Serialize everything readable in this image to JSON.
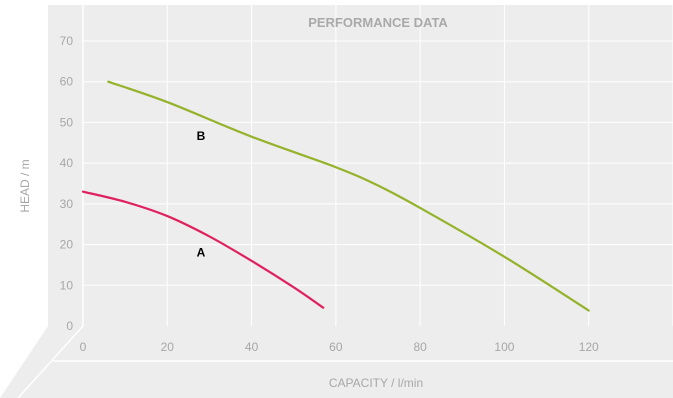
{
  "chart_data": {
    "type": "line",
    "title": "PERFORMANCE DATA",
    "xlabel": "CAPACITY / l/min",
    "ylabel": "HEAD / m",
    "xlim": [
      0,
      140
    ],
    "ylim": [
      0,
      70
    ],
    "xticks": [
      0,
      20,
      40,
      60,
      80,
      100,
      120
    ],
    "yticks": [
      0,
      10,
      20,
      30,
      40,
      50,
      60,
      70
    ],
    "grid": true,
    "series": [
      {
        "name": "A",
        "color": "#e0215f",
        "points": [
          [
            0,
            33
          ],
          [
            10,
            30.5
          ],
          [
            20,
            27
          ],
          [
            30,
            22
          ],
          [
            40,
            16
          ],
          [
            50,
            9.5
          ],
          [
            57,
            4.5
          ]
        ]
      },
      {
        "name": "B",
        "color": "#94b22a",
        "points": [
          [
            6,
            60
          ],
          [
            20,
            55
          ],
          [
            40,
            46.5
          ],
          [
            60,
            39
          ],
          [
            70,
            34.5
          ],
          [
            80,
            29
          ],
          [
            100,
            17
          ],
          [
            120,
            3.8
          ]
        ]
      }
    ]
  },
  "colors": {
    "panel": "#ededed",
    "grid": "#ffffff",
    "ticks": "#a7a7a7"
  }
}
